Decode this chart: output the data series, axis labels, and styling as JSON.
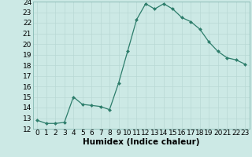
{
  "x": [
    0,
    1,
    2,
    3,
    4,
    5,
    6,
    7,
    8,
    9,
    10,
    11,
    12,
    13,
    14,
    15,
    16,
    17,
    18,
    19,
    20,
    21,
    22,
    23
  ],
  "y": [
    12.8,
    12.5,
    12.5,
    12.6,
    15.0,
    14.3,
    14.2,
    14.1,
    13.8,
    16.3,
    19.3,
    22.3,
    23.8,
    23.3,
    23.8,
    23.3,
    22.5,
    22.1,
    21.4,
    20.2,
    19.3,
    18.7,
    18.5,
    18.1
  ],
  "xlabel": "Humidex (Indice chaleur)",
  "ylim": [
    12,
    24
  ],
  "xlim_min": -0.5,
  "xlim_max": 23.5,
  "yticks": [
    12,
    13,
    14,
    15,
    16,
    17,
    18,
    19,
    20,
    21,
    22,
    23,
    24
  ],
  "xticks": [
    0,
    1,
    2,
    3,
    4,
    5,
    6,
    7,
    8,
    9,
    10,
    11,
    12,
    13,
    14,
    15,
    16,
    17,
    18,
    19,
    20,
    21,
    22,
    23
  ],
  "line_color": "#2d7d6b",
  "marker_color": "#2d7d6b",
  "bg_color": "#cce9e5",
  "grid_color": "#b8d8d4",
  "label_fontsize": 7.5,
  "tick_fontsize": 6.5
}
